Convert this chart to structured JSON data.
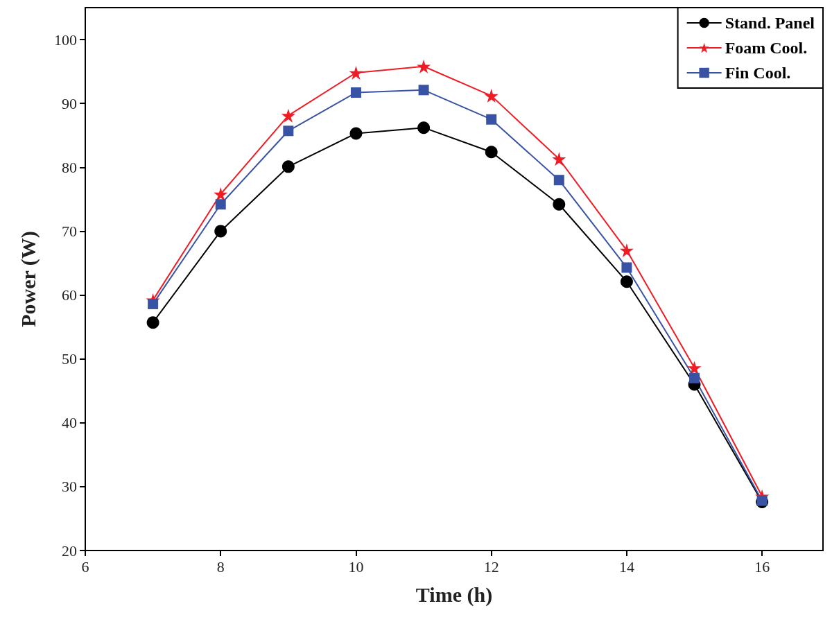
{
  "chart_data": {
    "type": "line",
    "xlabel": "Time (h)",
    "ylabel": "Power (W)",
    "x": [
      7,
      8,
      9,
      10,
      11,
      12,
      13,
      14,
      15,
      16
    ],
    "series": [
      {
        "name": "Stand. Panel",
        "color": "#000000",
        "marker": "circle",
        "values": [
          55.7,
          70,
          80.1,
          85.3,
          86.2,
          82.4,
          74.2,
          62.1,
          46,
          27.6
        ]
      },
      {
        "name": "Foam Cool.",
        "color": "#ee1c25",
        "marker": "star",
        "values": [
          59.2,
          75.8,
          88.1,
          94.8,
          95.8,
          91.2,
          81.3,
          67,
          48.6,
          28.5
        ]
      },
      {
        "name": "Fin Cool.",
        "color": "#3953a4",
        "marker": "square",
        "values": [
          58.6,
          74.2,
          85.7,
          91.7,
          92.1,
          87.5,
          78,
          64.3,
          47,
          27.8
        ]
      }
    ],
    "xlim": [
      6,
      16.9
    ],
    "xticks": [
      6,
      8,
      10,
      12,
      14,
      16
    ],
    "ylim": [
      20,
      105
    ],
    "yticks": [
      20,
      30,
      40,
      50,
      60,
      70,
      80,
      90,
      100
    ],
    "grid": false,
    "legend": "top right",
    "line_style": "solid"
  }
}
